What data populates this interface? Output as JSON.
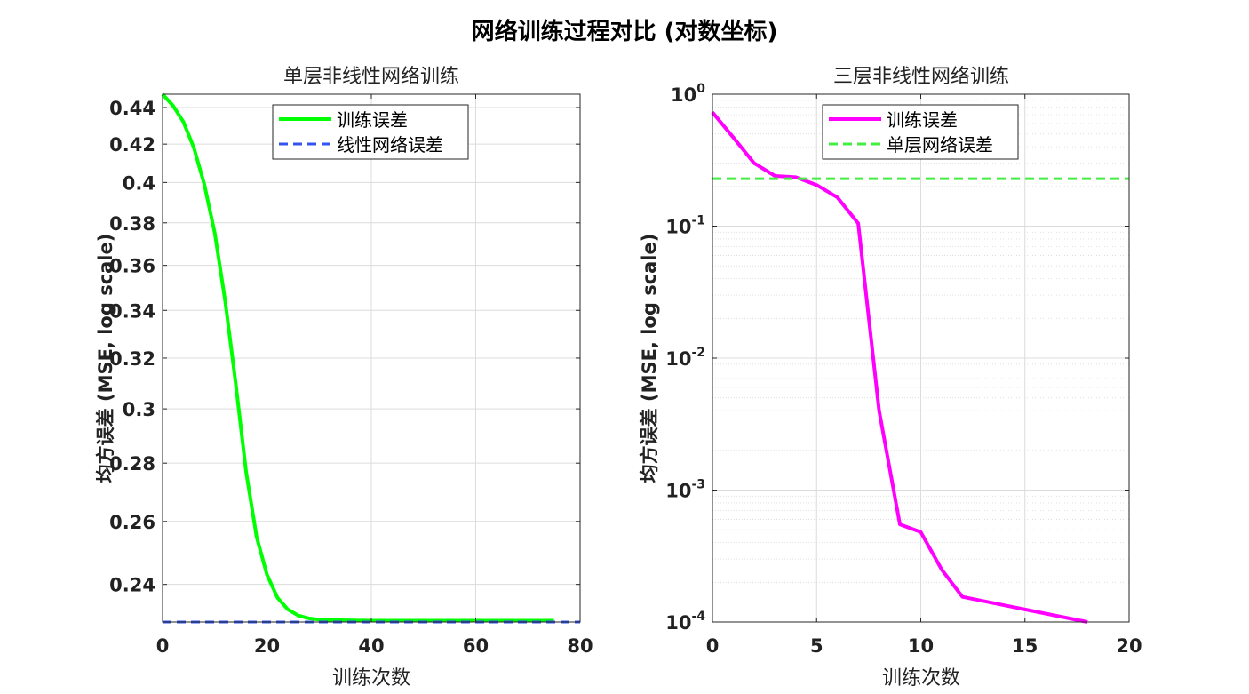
{
  "figure": {
    "title": "网络训练过程对比 (对数坐标)"
  },
  "chart_data": [
    {
      "type": "line",
      "title": "单层非线性网络训练",
      "xlabel": "训练次数",
      "ylabel": "均方误差 (MSE, log scale)",
      "xlim": [
        0,
        80
      ],
      "ylim": [
        0.2288,
        0.4475
      ],
      "yscale": "log",
      "xticks": [
        "0",
        "20",
        "40",
        "60",
        "80"
      ],
      "yticks": [
        "0.24",
        "0.26",
        "0.28",
        "0.3",
        "0.32",
        "0.34",
        "0.36",
        "0.38",
        "0.4",
        "0.42",
        "0.44"
      ],
      "grid": true,
      "legend_position": "top-center",
      "series": [
        {
          "name": "训练误差",
          "color": "#00ff00",
          "style": "solid",
          "x": [
            0,
            2,
            4,
            6,
            8,
            10,
            12,
            14,
            16,
            18,
            20,
            22,
            24,
            26,
            28,
            30,
            35,
            40,
            50,
            60,
            70,
            75
          ],
          "y": [
            0.4475,
            0.441,
            0.432,
            0.418,
            0.399,
            0.375,
            0.344,
            0.31,
            0.277,
            0.255,
            0.243,
            0.236,
            0.2325,
            0.2307,
            0.2299,
            0.2295,
            0.2293,
            0.2292,
            0.2292,
            0.2292,
            0.2292,
            0.2292
          ]
        },
        {
          "name": "线性网络误差",
          "color": "#3355ee",
          "style": "dashed",
          "x": [
            0,
            80
          ],
          "y": [
            0.2288,
            0.2288
          ]
        }
      ]
    },
    {
      "type": "line",
      "title": "三层非线性网络训练",
      "xlabel": "训练次数",
      "ylabel": "均方误差 (MSE, log scale)",
      "xlim": [
        0,
        20
      ],
      "ylim": [
        0.0001,
        1
      ],
      "yscale": "log",
      "xticks": [
        "0",
        "5",
        "10",
        "15",
        "20"
      ],
      "yticks": [
        {
          "base": "10",
          "exp": "-4",
          "value": 0.0001
        },
        {
          "base": "10",
          "exp": "-3",
          "value": 0.001
        },
        {
          "base": "10",
          "exp": "-2",
          "value": 0.01
        },
        {
          "base": "10",
          "exp": "-1",
          "value": 0.1
        },
        {
          "base": "10",
          "exp": "0",
          "value": 1
        }
      ],
      "grid": true,
      "legend_position": "top-center",
      "series": [
        {
          "name": "训练误差",
          "color": "#ff00ff",
          "style": "solid",
          "x": [
            0,
            1,
            2,
            3,
            4,
            5,
            6,
            7,
            8,
            9,
            10,
            11,
            12,
            18
          ],
          "y": [
            0.73,
            0.47,
            0.3,
            0.24,
            0.235,
            0.205,
            0.165,
            0.105,
            0.004,
            0.00055,
            0.00048,
            0.00025,
            0.000155,
            0.0001
          ]
        },
        {
          "name": "单层网络误差",
          "color": "#44ee44",
          "style": "dashed",
          "x": [
            0,
            20
          ],
          "y": [
            0.229,
            0.229
          ]
        }
      ]
    }
  ]
}
